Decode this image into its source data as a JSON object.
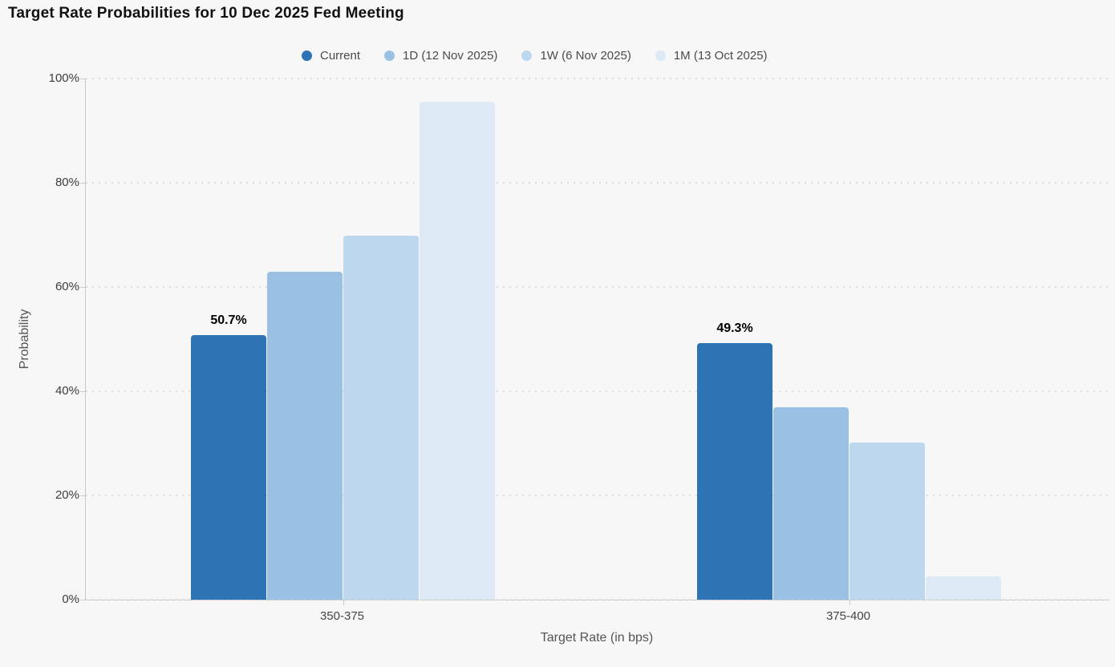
{
  "title": "Target Rate Probabilities for 10 Dec 2025 Fed Meeting",
  "chart_data": {
    "type": "bar",
    "title": "Target Rate Probabilities for 10 Dec 2025 Fed Meeting",
    "xlabel": "Target Rate (in bps)",
    "ylabel": "Probability",
    "categories": [
      "350-375",
      "375-400"
    ],
    "series": [
      {
        "name": "Current",
        "color": "#2e73b4",
        "values": [
          50.7,
          49.3
        ],
        "data_labels": [
          "50.7%",
          "49.3%"
        ]
      },
      {
        "name": "1D (12 Nov 2025)",
        "color": "#9ac0e4",
        "values": [
          63.0,
          37.0
        ]
      },
      {
        "name": "1W (6 Nov 2025)",
        "color": "#bdd7ee",
        "values": [
          69.8,
          30.2
        ]
      },
      {
        "name": "1M (13 Oct 2025)",
        "color": "#dde9f5",
        "values": [
          95.5,
          4.5
        ]
      }
    ],
    "y_ticks": [
      "0%",
      "20%",
      "40%",
      "60%",
      "80%",
      "100%"
    ],
    "y_tick_values": [
      0,
      20,
      40,
      60,
      80,
      100
    ],
    "ylim": [
      0,
      100
    ],
    "grid": true,
    "legend_position": "top"
  },
  "colors": {
    "background": "#f7f7f7",
    "gridline": "#dcdcdc",
    "axis": "#c9c9c9",
    "title_text": "#111111",
    "tick_text": "#3c3c3c",
    "axis_title_text": "#555555",
    "legend_text": "#4a4a4a",
    "data_label_text": "#000000"
  }
}
